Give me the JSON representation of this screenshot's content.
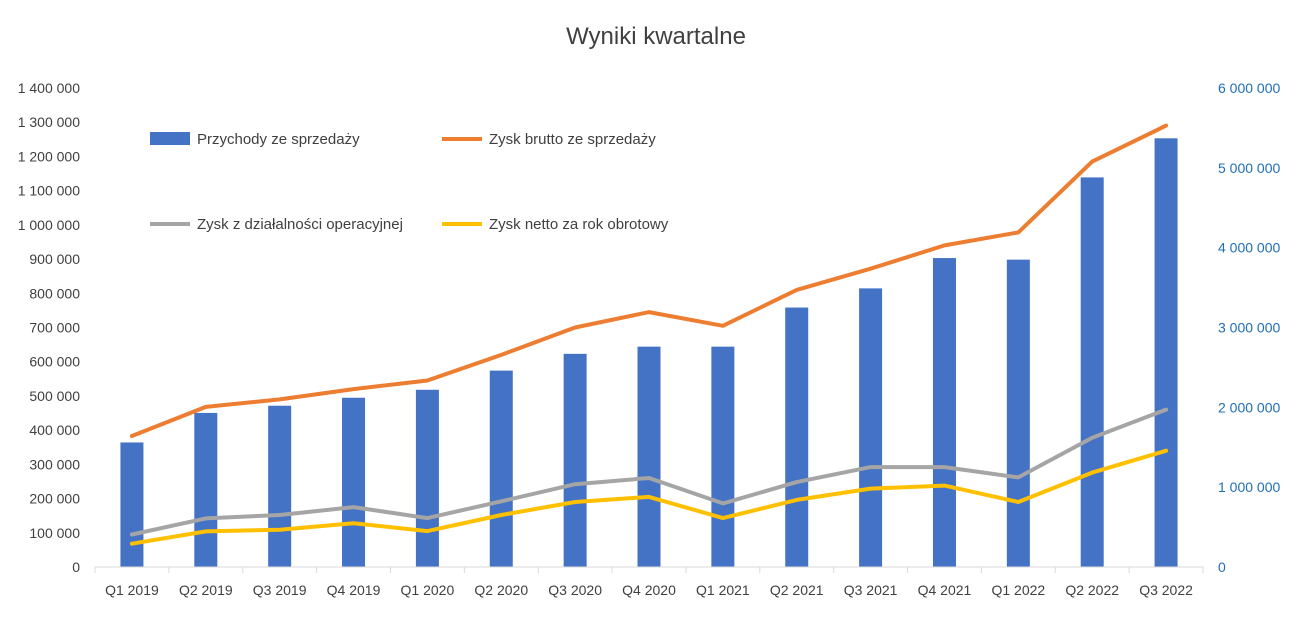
{
  "chart_data": {
    "type": "bar",
    "title": "Wyniki kwartalne",
    "categories": [
      "Q1 2019",
      "Q2 2019",
      "Q3 2019",
      "Q4 2019",
      "Q1 2020",
      "Q2 2020",
      "Q3 2020",
      "Q4 2020",
      "Q1 2021",
      "Q2 2021",
      "Q3 2021",
      "Q4 2021",
      "Q1 2022",
      "Q2 2022",
      "Q3 2022"
    ],
    "left_axis": {
      "ylim": [
        0,
        1400000
      ],
      "ticks": [
        "0",
        "100 000",
        "200 000",
        "300 000",
        "400 000",
        "500 000",
        "600 000",
        "700 000",
        "800 000",
        "900 000",
        "1 000 000",
        "1 100 000",
        "1 200 000",
        "1 300 000",
        "1 400 000"
      ]
    },
    "right_axis": {
      "ylim": [
        0,
        6000000
      ],
      "ticks": [
        "0",
        "1 000 000",
        "2 000 000",
        "3 000 000",
        "4 000 000",
        "5 000 000",
        "6 000 000"
      ],
      "color": "#1f6fb5"
    },
    "series": [
      {
        "name": "Przychody ze sprzedaży",
        "kind": "bar",
        "axis": "right",
        "color": "#4472c4",
        "values": [
          1560000,
          1930000,
          2020000,
          2120000,
          2220000,
          2460000,
          2670000,
          2760000,
          2760000,
          3250000,
          3490000,
          3870000,
          3850000,
          4880000,
          5370000
        ]
      },
      {
        "name": "Zysk brutto ze sprzedaży",
        "kind": "line",
        "axis": "left",
        "color": "#ed7d31",
        "values": [
          383000,
          468000,
          490000,
          520000,
          545000,
          620000,
          700000,
          745000,
          705000,
          810000,
          872000,
          940000,
          978000,
          1185000,
          1290000
        ]
      },
      {
        "name": "Zysk z działalności operacyjnej",
        "kind": "line",
        "axis": "left",
        "color": "#a5a5a5",
        "values": [
          95000,
          142000,
          152000,
          175000,
          143000,
          192000,
          242000,
          260000,
          186000,
          248000,
          292000,
          292000,
          262000,
          378000,
          460000
        ]
      },
      {
        "name": "Zysk netto za rok obrotowy",
        "kind": "line",
        "axis": "left",
        "color": "#ffc000",
        "values": [
          68000,
          104000,
          109000,
          128000,
          105000,
          152000,
          190000,
          205000,
          143000,
          196000,
          229000,
          238000,
          190000,
          276000,
          340000
        ]
      }
    ],
    "legend_position": "top-left (inside plot)",
    "grid": false
  }
}
